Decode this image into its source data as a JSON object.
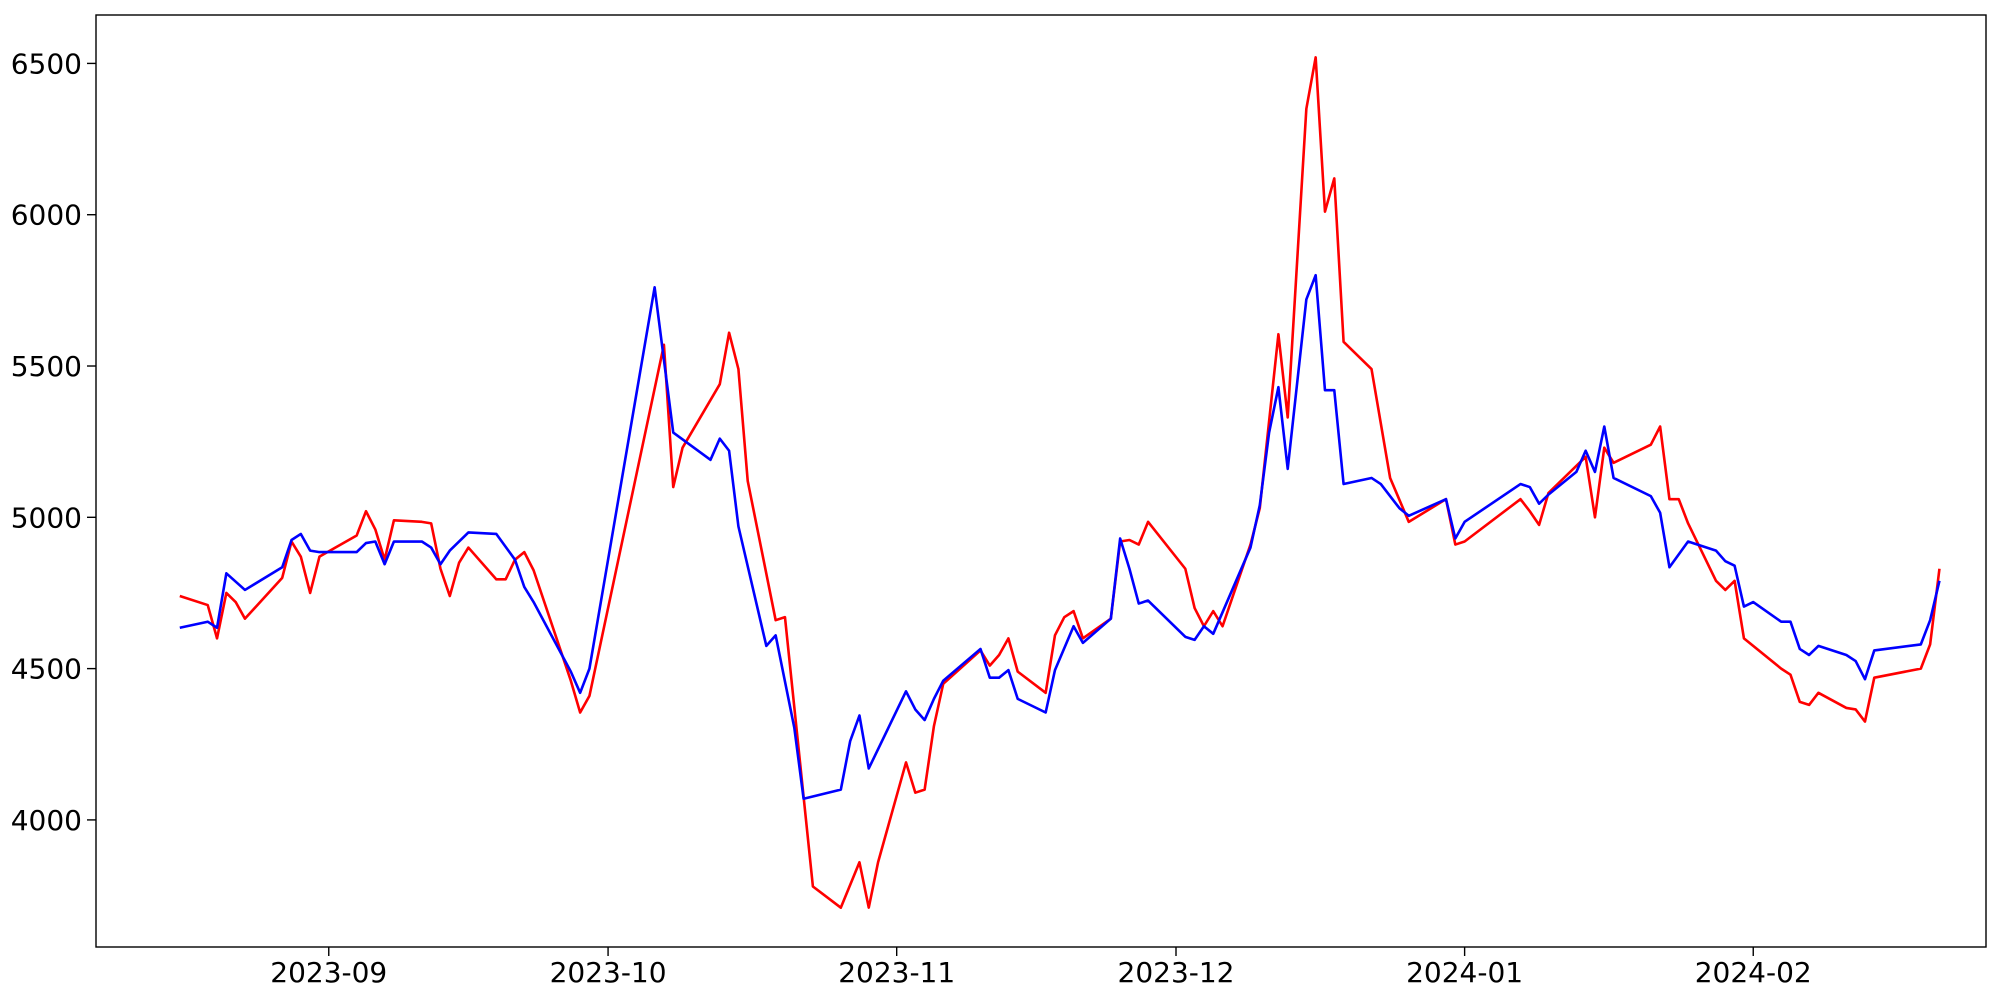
{
  "chart_data": {
    "type": "line",
    "title": "",
    "xlabel": "",
    "ylabel": "",
    "grid": false,
    "xlim": [
      "2023-08-07",
      "2024-02-26"
    ],
    "ylim": [
      3580,
      6660
    ],
    "x_ticks": [
      {
        "date": "2023-09-01",
        "label": "2023-09"
      },
      {
        "date": "2023-10-01",
        "label": "2023-10"
      },
      {
        "date": "2023-11-01",
        "label": "2023-11"
      },
      {
        "date": "2023-12-01",
        "label": "2023-12"
      },
      {
        "date": "2024-01-01",
        "label": "2024-01"
      },
      {
        "date": "2024-02-01",
        "label": "2024-02"
      }
    ],
    "y_ticks": [
      {
        "value": 4000,
        "label": "4000"
      },
      {
        "value": 4500,
        "label": "4500"
      },
      {
        "value": 5000,
        "label": "5000"
      },
      {
        "value": 5500,
        "label": "5500"
      },
      {
        "value": 6000,
        "label": "6000"
      },
      {
        "value": 6500,
        "label": "6500"
      }
    ],
    "series": [
      {
        "color": "#ff0000",
        "points": [
          [
            "2023-08-16",
            4740
          ],
          [
            "2023-08-19",
            4710
          ],
          [
            "2023-08-20",
            4600
          ],
          [
            "2023-08-21",
            4750
          ],
          [
            "2023-08-22",
            4720
          ],
          [
            "2023-08-23",
            4665
          ],
          [
            "2023-08-27",
            4800
          ],
          [
            "2023-08-28",
            4920
          ],
          [
            "2023-08-29",
            4870
          ],
          [
            "2023-08-30",
            4750
          ],
          [
            "2023-08-31",
            4870
          ],
          [
            "2023-09-04",
            4940
          ],
          [
            "2023-09-05",
            5020
          ],
          [
            "2023-09-06",
            4960
          ],
          [
            "2023-09-07",
            4860
          ],
          [
            "2023-09-08",
            4990
          ],
          [
            "2023-09-11",
            4985
          ],
          [
            "2023-09-12",
            4980
          ],
          [
            "2023-09-13",
            4830
          ],
          [
            "2023-09-14",
            4740
          ],
          [
            "2023-09-15",
            4850
          ],
          [
            "2023-09-16",
            4900
          ],
          [
            "2023-09-19",
            4795
          ],
          [
            "2023-09-20",
            4795
          ],
          [
            "2023-09-21",
            4860
          ],
          [
            "2023-09-22",
            4885
          ],
          [
            "2023-09-23",
            4825
          ],
          [
            "2023-09-27",
            4460
          ],
          [
            "2023-09-28",
            4355
          ],
          [
            "2023-09-29",
            4410
          ],
          [
            "2023-10-07",
            5570
          ],
          [
            "2023-10-08",
            5100
          ],
          [
            "2023-10-09",
            5230
          ],
          [
            "2023-10-13",
            5440
          ],
          [
            "2023-10-14",
            5610
          ],
          [
            "2023-10-15",
            5490
          ],
          [
            "2023-10-16",
            5120
          ],
          [
            "2023-10-19",
            4660
          ],
          [
            "2023-10-20",
            4670
          ],
          [
            "2023-10-23",
            3780
          ],
          [
            "2023-10-26",
            3710
          ],
          [
            "2023-10-28",
            3860
          ],
          [
            "2023-10-29",
            3710
          ],
          [
            "2023-10-30",
            3860
          ],
          [
            "2023-11-02",
            4190
          ],
          [
            "2023-11-03",
            4090
          ],
          [
            "2023-11-04",
            4100
          ],
          [
            "2023-11-05",
            4310
          ],
          [
            "2023-11-06",
            4450
          ],
          [
            "2023-11-10",
            4560
          ],
          [
            "2023-11-11",
            4510
          ],
          [
            "2023-11-12",
            4545
          ],
          [
            "2023-11-13",
            4600
          ],
          [
            "2023-11-14",
            4490
          ],
          [
            "2023-11-17",
            4420
          ],
          [
            "2023-11-18",
            4610
          ],
          [
            "2023-11-19",
            4670
          ],
          [
            "2023-11-20",
            4690
          ],
          [
            "2023-11-21",
            4600
          ],
          [
            "2023-11-24",
            4665
          ],
          [
            "2023-11-25",
            4920
          ],
          [
            "2023-11-26",
            4925
          ],
          [
            "2023-11-27",
            4910
          ],
          [
            "2023-11-28",
            4985
          ],
          [
            "2023-12-02",
            4830
          ],
          [
            "2023-12-03",
            4700
          ],
          [
            "2023-12-04",
            4640
          ],
          [
            "2023-12-05",
            4690
          ],
          [
            "2023-12-06",
            4640
          ],
          [
            "2023-12-09",
            4910
          ],
          [
            "2023-12-10",
            5030
          ],
          [
            "2023-12-12",
            5605
          ],
          [
            "2023-12-13",
            5330
          ],
          [
            "2023-12-15",
            6350
          ],
          [
            "2023-12-16",
            6520
          ],
          [
            "2023-12-17",
            6010
          ],
          [
            "2023-12-18",
            6120
          ],
          [
            "2023-12-19",
            5580
          ],
          [
            "2023-12-22",
            5490
          ],
          [
            "2023-12-24",
            5130
          ],
          [
            "2023-12-26",
            4985
          ],
          [
            "2023-12-30",
            5060
          ],
          [
            "2023-12-31",
            4910
          ],
          [
            "2024-01-01",
            4920
          ],
          [
            "2024-01-07",
            5060
          ],
          [
            "2024-01-08",
            5020
          ],
          [
            "2024-01-09",
            4975
          ],
          [
            "2024-01-10",
            5080
          ],
          [
            "2024-01-14",
            5200
          ],
          [
            "2024-01-15",
            5000
          ],
          [
            "2024-01-16",
            5230
          ],
          [
            "2024-01-17",
            5180
          ],
          [
            "2024-01-21",
            5240
          ],
          [
            "2024-01-22",
            5300
          ],
          [
            "2024-01-23",
            5060
          ],
          [
            "2024-01-24",
            5060
          ],
          [
            "2024-01-25",
            4980
          ],
          [
            "2024-01-28",
            4790
          ],
          [
            "2024-01-29",
            4760
          ],
          [
            "2024-01-30",
            4790
          ],
          [
            "2024-01-31",
            4600
          ],
          [
            "2024-02-04",
            4500
          ],
          [
            "2024-02-05",
            4480
          ],
          [
            "2024-02-06",
            4390
          ],
          [
            "2024-02-07",
            4380
          ],
          [
            "2024-02-08",
            4420
          ],
          [
            "2024-02-11",
            4370
          ],
          [
            "2024-02-12",
            4365
          ],
          [
            "2024-02-13",
            4325
          ],
          [
            "2024-02-14",
            4470
          ],
          [
            "2024-02-19",
            4500
          ],
          [
            "2024-02-20",
            4580
          ],
          [
            "2024-02-21",
            4830
          ]
        ]
      },
      {
        "color": "#0000ff",
        "points": [
          [
            "2023-08-16",
            4635
          ],
          [
            "2023-08-19",
            4655
          ],
          [
            "2023-08-20",
            4635
          ],
          [
            "2023-08-21",
            4815
          ],
          [
            "2023-08-23",
            4760
          ],
          [
            "2023-08-27",
            4835
          ],
          [
            "2023-08-28",
            4925
          ],
          [
            "2023-08-29",
            4945
          ],
          [
            "2023-08-30",
            4890
          ],
          [
            "2023-08-31",
            4885
          ],
          [
            "2023-09-04",
            4885
          ],
          [
            "2023-09-05",
            4915
          ],
          [
            "2023-09-06",
            4920
          ],
          [
            "2023-09-07",
            4845
          ],
          [
            "2023-09-08",
            4920
          ],
          [
            "2023-09-11",
            4920
          ],
          [
            "2023-09-12",
            4900
          ],
          [
            "2023-09-13",
            4845
          ],
          [
            "2023-09-14",
            4890
          ],
          [
            "2023-09-16",
            4950
          ],
          [
            "2023-09-19",
            4945
          ],
          [
            "2023-09-21",
            4860
          ],
          [
            "2023-09-22",
            4770
          ],
          [
            "2023-09-23",
            4720
          ],
          [
            "2023-09-27",
            4490
          ],
          [
            "2023-09-28",
            4420
          ],
          [
            "2023-09-29",
            4500
          ],
          [
            "2023-10-06",
            5760
          ],
          [
            "2023-10-08",
            5280
          ],
          [
            "2023-10-12",
            5190
          ],
          [
            "2023-10-13",
            5260
          ],
          [
            "2023-10-14",
            5220
          ],
          [
            "2023-10-15",
            4970
          ],
          [
            "2023-10-18",
            4575
          ],
          [
            "2023-10-19",
            4610
          ],
          [
            "2023-10-21",
            4305
          ],
          [
            "2023-10-22",
            4070
          ],
          [
            "2023-10-26",
            4100
          ],
          [
            "2023-10-27",
            4260
          ],
          [
            "2023-10-28",
            4345
          ],
          [
            "2023-10-29",
            4170
          ],
          [
            "2023-11-02",
            4425
          ],
          [
            "2023-11-03",
            4365
          ],
          [
            "2023-11-04",
            4330
          ],
          [
            "2023-11-05",
            4400
          ],
          [
            "2023-11-06",
            4460
          ],
          [
            "2023-11-10",
            4565
          ],
          [
            "2023-11-11",
            4470
          ],
          [
            "2023-11-12",
            4470
          ],
          [
            "2023-11-13",
            4495
          ],
          [
            "2023-11-14",
            4400
          ],
          [
            "2023-11-17",
            4355
          ],
          [
            "2023-11-18",
            4495
          ],
          [
            "2023-11-20",
            4640
          ],
          [
            "2023-11-21",
            4585
          ],
          [
            "2023-11-24",
            4665
          ],
          [
            "2023-11-25",
            4930
          ],
          [
            "2023-11-26",
            4830
          ],
          [
            "2023-11-27",
            4715
          ],
          [
            "2023-11-28",
            4725
          ],
          [
            "2023-12-02",
            4605
          ],
          [
            "2023-12-03",
            4595
          ],
          [
            "2023-12-04",
            4640
          ],
          [
            "2023-12-05",
            4615
          ],
          [
            "2023-12-09",
            4900
          ],
          [
            "2023-12-10",
            5040
          ],
          [
            "2023-12-11",
            5280
          ],
          [
            "2023-12-12",
            5430
          ],
          [
            "2023-12-13",
            5160
          ],
          [
            "2023-12-15",
            5720
          ],
          [
            "2023-12-16",
            5800
          ],
          [
            "2023-12-17",
            5420
          ],
          [
            "2023-12-18",
            5420
          ],
          [
            "2023-12-19",
            5110
          ],
          [
            "2023-12-22",
            5130
          ],
          [
            "2023-12-23",
            5110
          ],
          [
            "2023-12-25",
            5030
          ],
          [
            "2023-12-26",
            5005
          ],
          [
            "2023-12-30",
            5060
          ],
          [
            "2023-12-31",
            4930
          ],
          [
            "2024-01-01",
            4985
          ],
          [
            "2024-01-07",
            5110
          ],
          [
            "2024-01-08",
            5100
          ],
          [
            "2024-01-09",
            5045
          ],
          [
            "2024-01-10",
            5075
          ],
          [
            "2024-01-13",
            5150
          ],
          [
            "2024-01-14",
            5220
          ],
          [
            "2024-01-15",
            5150
          ],
          [
            "2024-01-16",
            5300
          ],
          [
            "2024-01-17",
            5130
          ],
          [
            "2024-01-21",
            5070
          ],
          [
            "2024-01-22",
            5015
          ],
          [
            "2024-01-23",
            4835
          ],
          [
            "2024-01-25",
            4920
          ],
          [
            "2024-01-28",
            4890
          ],
          [
            "2024-01-29",
            4855
          ],
          [
            "2024-01-30",
            4840
          ],
          [
            "2024-01-31",
            4705
          ],
          [
            "2024-02-01",
            4720
          ],
          [
            "2024-02-04",
            4655
          ],
          [
            "2024-02-05",
            4655
          ],
          [
            "2024-02-06",
            4565
          ],
          [
            "2024-02-07",
            4545
          ],
          [
            "2024-02-08",
            4575
          ],
          [
            "2024-02-11",
            4545
          ],
          [
            "2024-02-12",
            4525
          ],
          [
            "2024-02-13",
            4465
          ],
          [
            "2024-02-14",
            4560
          ],
          [
            "2024-02-19",
            4580
          ],
          [
            "2024-02-20",
            4660
          ],
          [
            "2024-02-21",
            4790
          ]
        ]
      }
    ]
  }
}
